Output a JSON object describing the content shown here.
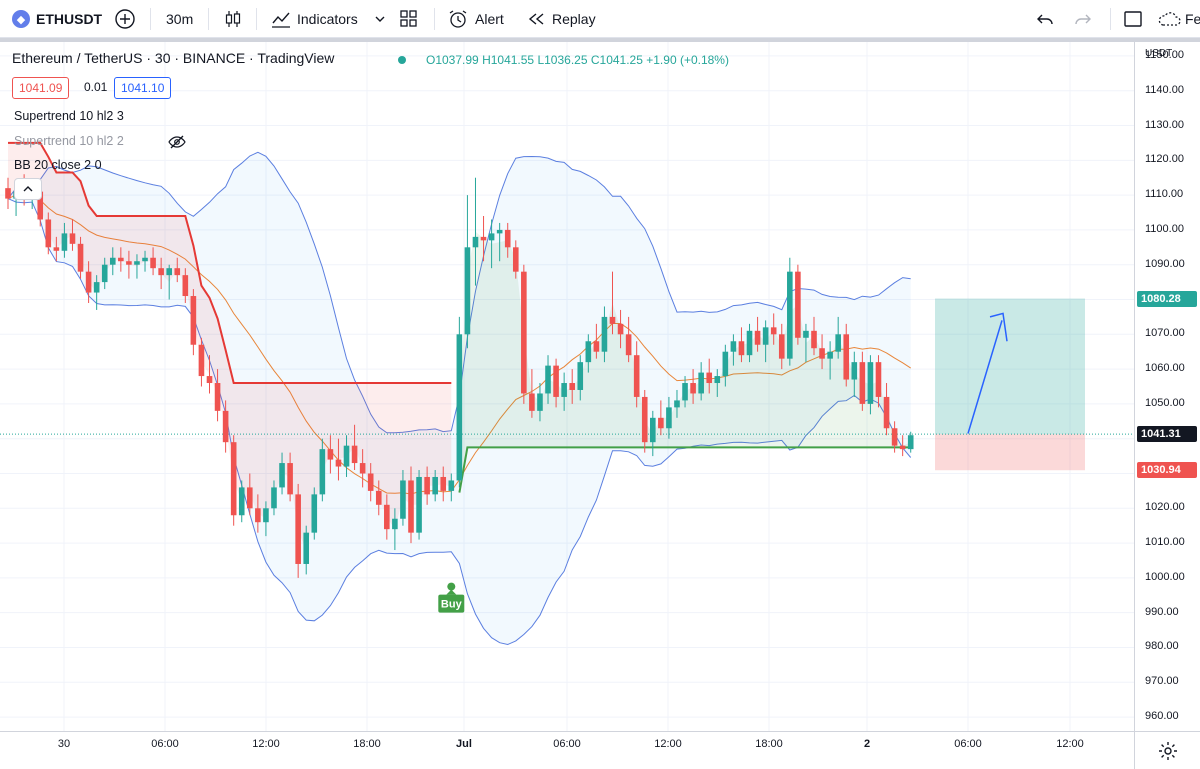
{
  "toolbar": {
    "symbol": "ETHUSDT",
    "interval": "30m",
    "indicators_label": "Indicators",
    "alert_label": "Alert",
    "replay_label": "Replay",
    "right_truncated_label": "Fe"
  },
  "legend": {
    "title": "Ethereum / TetherUS · 30 · BINANCE · TradingView",
    "open": "O1037.99",
    "high": "H1041.55",
    "low": "L1036.25",
    "close": "C1041.25",
    "change": "+1.90 (+0.18%)",
    "bid": "1041.09",
    "spread": "0.01",
    "ask": "1041.10",
    "indicators": [
      "Supertrend 10 hl2 3",
      "Supertrend 10 hl2 2",
      "BB 20 close 2 0"
    ]
  },
  "price_axis": {
    "currency": "USDT",
    "ticks": [
      "1150.00",
      "1140.00",
      "1130.00",
      "1120.00",
      "1110.00",
      "1100.00",
      "1090.00",
      "1080.00",
      "1070.00",
      "1060.00",
      "1050.00",
      "1040.00",
      "1030.00",
      "1020.00",
      "1010.00",
      "1000.00",
      "990.00",
      "980.00",
      "970.00",
      "960.00"
    ],
    "badges": [
      {
        "label": "1080.28",
        "value": 1080.28,
        "color": "#26a69a"
      },
      {
        "label": "1041.31",
        "value": 1041.31,
        "color": "#131722"
      },
      {
        "label": "1030.94",
        "value": 1030.94,
        "color": "#ef5350"
      }
    ]
  },
  "time_axis": {
    "ticks": [
      "30",
      "06:00",
      "12:00",
      "18:00",
      "Jul",
      "06:00",
      "12:00",
      "18:00",
      "2",
      "06:00",
      "12:00"
    ]
  },
  "signals": {
    "buy_label": "Buy"
  },
  "colors": {
    "up": "#26a69a",
    "down": "#ef5350",
    "bb": "#5b7fe0",
    "basis": "#e8863a",
    "st_down": "#e53935",
    "st_up": "#43a047"
  },
  "chart_data": {
    "type": "candlestick",
    "title": "Ethereum / TetherUS · 30 · BINANCE · TradingView",
    "ylim": [
      956,
      1154
    ],
    "x_ticks": [
      "30",
      "06:00",
      "12:00",
      "18:00",
      "Jul",
      "06:00",
      "12:00",
      "18:00",
      "2",
      "06:00",
      "12:00"
    ],
    "ohlc": [
      [
        1112,
        1115,
        1106,
        1109
      ],
      [
        1109,
        1113,
        1104,
        1111
      ],
      [
        1111,
        1116,
        1107,
        1109
      ],
      [
        1109,
        1114,
        1106,
        1111
      ],
      [
        1111,
        1113,
        1101,
        1103
      ],
      [
        1103,
        1105,
        1093,
        1095
      ],
      [
        1095,
        1098,
        1091,
        1094
      ],
      [
        1094,
        1102,
        1092,
        1099
      ],
      [
        1099,
        1103,
        1094,
        1096
      ],
      [
        1096,
        1098,
        1086,
        1088
      ],
      [
        1088,
        1091,
        1079,
        1082
      ],
      [
        1082,
        1087,
        1077,
        1085
      ],
      [
        1085,
        1092,
        1083,
        1090
      ],
      [
        1090,
        1095,
        1087,
        1092
      ],
      [
        1092,
        1095,
        1088,
        1091
      ],
      [
        1091,
        1094,
        1086,
        1090
      ],
      [
        1090,
        1093,
        1086,
        1091
      ],
      [
        1091,
        1094,
        1088,
        1092
      ],
      [
        1092,
        1095,
        1087,
        1089
      ],
      [
        1089,
        1092,
        1083,
        1087
      ],
      [
        1087,
        1090,
        1080,
        1089
      ],
      [
        1089,
        1092,
        1085,
        1087
      ],
      [
        1087,
        1089,
        1079,
        1081
      ],
      [
        1081,
        1083,
        1064,
        1067
      ],
      [
        1067,
        1069,
        1055,
        1058
      ],
      [
        1058,
        1064,
        1053,
        1056
      ],
      [
        1056,
        1060,
        1045,
        1048
      ],
      [
        1048,
        1051,
        1036,
        1039
      ],
      [
        1039,
        1041,
        1015,
        1018
      ],
      [
        1018,
        1028,
        1016,
        1026
      ],
      [
        1026,
        1030,
        1018,
        1020
      ],
      [
        1020,
        1024,
        1013,
        1016
      ],
      [
        1016,
        1022,
        1012,
        1020
      ],
      [
        1020,
        1028,
        1018,
        1026
      ],
      [
        1026,
        1036,
        1024,
        1033
      ],
      [
        1033,
        1036,
        1022,
        1024
      ],
      [
        1024,
        1027,
        1000,
        1004
      ],
      [
        1004,
        1015,
        1001,
        1013
      ],
      [
        1013,
        1026,
        1011,
        1024
      ],
      [
        1024,
        1040,
        1022,
        1037
      ],
      [
        1037,
        1041,
        1030,
        1034
      ],
      [
        1034,
        1040,
        1028,
        1032
      ],
      [
        1032,
        1041,
        1029,
        1038
      ],
      [
        1038,
        1044,
        1031,
        1033
      ],
      [
        1033,
        1037,
        1026,
        1030
      ],
      [
        1030,
        1033,
        1022,
        1025
      ],
      [
        1025,
        1028,
        1018,
        1021
      ],
      [
        1021,
        1024,
        1011,
        1014
      ],
      [
        1014,
        1020,
        1008,
        1017
      ],
      [
        1017,
        1031,
        1015,
        1028
      ],
      [
        1028,
        1032,
        1010,
        1013
      ],
      [
        1013,
        1031,
        1011,
        1029
      ],
      [
        1029,
        1032,
        1021,
        1024
      ],
      [
        1024,
        1031,
        1022,
        1029
      ],
      [
        1029,
        1032,
        1022,
        1025
      ],
      [
        1025,
        1030,
        1022,
        1028
      ],
      [
        1028,
        1075,
        1026,
        1070
      ],
      [
        1070,
        1110,
        1066,
        1095
      ],
      [
        1095,
        1115,
        1084,
        1098
      ],
      [
        1098,
        1104,
        1091,
        1097
      ],
      [
        1097,
        1103,
        1089,
        1099
      ],
      [
        1099,
        1102,
        1091,
        1100
      ],
      [
        1100,
        1102,
        1092,
        1095
      ],
      [
        1095,
        1097,
        1086,
        1088
      ],
      [
        1088,
        1090,
        1050,
        1053
      ],
      [
        1053,
        1060,
        1046,
        1048
      ],
      [
        1048,
        1056,
        1045,
        1053
      ],
      [
        1053,
        1064,
        1050,
        1061
      ],
      [
        1061,
        1063,
        1049,
        1052
      ],
      [
        1052,
        1059,
        1048,
        1056
      ],
      [
        1056,
        1060,
        1050,
        1054
      ],
      [
        1054,
        1064,
        1051,
        1062
      ],
      [
        1062,
        1070,
        1059,
        1068
      ],
      [
        1068,
        1073,
        1063,
        1065
      ],
      [
        1065,
        1078,
        1062,
        1075
      ],
      [
        1075,
        1088,
        1070,
        1073
      ],
      [
        1073,
        1077,
        1066,
        1070
      ],
      [
        1070,
        1075,
        1062,
        1064
      ],
      [
        1064,
        1068,
        1049,
        1052
      ],
      [
        1052,
        1054,
        1036,
        1039
      ],
      [
        1039,
        1048,
        1035,
        1046
      ],
      [
        1046,
        1051,
        1041,
        1043
      ],
      [
        1043,
        1052,
        1040,
        1049
      ],
      [
        1049,
        1054,
        1046,
        1051
      ],
      [
        1051,
        1058,
        1049,
        1056
      ],
      [
        1056,
        1060,
        1050,
        1053
      ],
      [
        1053,
        1062,
        1051,
        1059
      ],
      [
        1059,
        1063,
        1053,
        1056
      ],
      [
        1056,
        1060,
        1052,
        1058
      ],
      [
        1058,
        1067,
        1055,
        1065
      ],
      [
        1065,
        1070,
        1061,
        1068
      ],
      [
        1068,
        1072,
        1062,
        1064
      ],
      [
        1064,
        1073,
        1062,
        1071
      ],
      [
        1071,
        1075,
        1065,
        1067
      ],
      [
        1067,
        1074,
        1062,
        1072
      ],
      [
        1072,
        1076,
        1067,
        1070
      ],
      [
        1070,
        1073,
        1060,
        1063
      ],
      [
        1063,
        1092,
        1061,
        1088
      ],
      [
        1088,
        1090,
        1067,
        1069
      ],
      [
        1069,
        1073,
        1062,
        1071
      ],
      [
        1071,
        1075,
        1064,
        1066
      ],
      [
        1066,
        1070,
        1060,
        1063
      ],
      [
        1063,
        1068,
        1057,
        1065
      ],
      [
        1065,
        1075,
        1063,
        1070
      ],
      [
        1070,
        1073,
        1055,
        1057
      ],
      [
        1057,
        1065,
        1052,
        1062
      ],
      [
        1062,
        1065,
        1048,
        1050
      ],
      [
        1050,
        1064,
        1047,
        1062
      ],
      [
        1062,
        1064,
        1049,
        1052
      ],
      [
        1052,
        1056,
        1041,
        1043
      ],
      [
        1043,
        1045,
        1036,
        1038
      ],
      [
        1038,
        1041,
        1035,
        1037
      ],
      [
        1037,
        1042,
        1036,
        1041
      ]
    ],
    "position_tool": {
      "entry": 1041.31,
      "target": 1080.28,
      "stop": 1030.94
    }
  }
}
